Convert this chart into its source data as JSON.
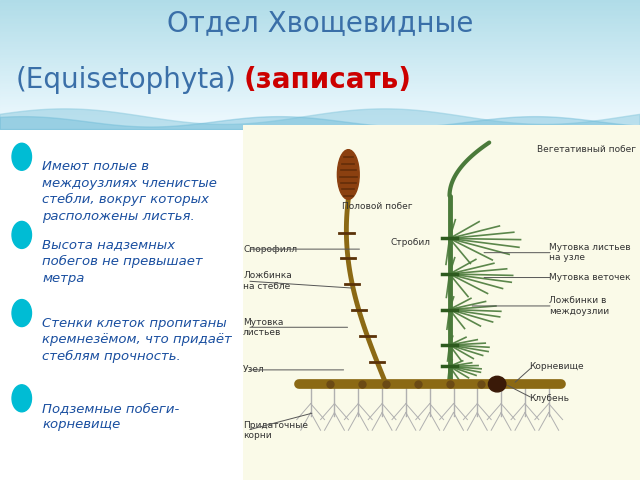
{
  "title_line1": "Отдел Хвощевидные",
  "title_line2_normal": "(Equisetophyta)",
  "title_line2_red": "(записать)",
  "title_color_normal": "#3a6fa8",
  "title_color_red": "#cc0000",
  "title_fontsize": 20,
  "bg_color": "#ffffff",
  "bullet_color": "#00bcd4",
  "text_color": "#1a4fa0",
  "bullet_items": [
    "Имеют полые в\nмеждоузлиях членистые\nстебли, вокруг которых\nрасположены листья.",
    "Высота надземных\nпобегов не превышает\nметра",
    "Стенки клеток пропитаны\nкремнезёмом, что придаёт\nстеблям прочность.",
    "Подземные побеги-\nкорневище"
  ],
  "bullet_fontsize": 9.5,
  "diagram_bg": "#fafae8",
  "stem_color": "#8b6914",
  "green_color": "#4a7a3a",
  "brown_dark": "#6b4a14",
  "root_color": "#b0b0b0",
  "label_color": "#333333",
  "label_fontsize": 6.5,
  "header_color1": "#b0dce8",
  "header_color2": "#e0f4f8"
}
